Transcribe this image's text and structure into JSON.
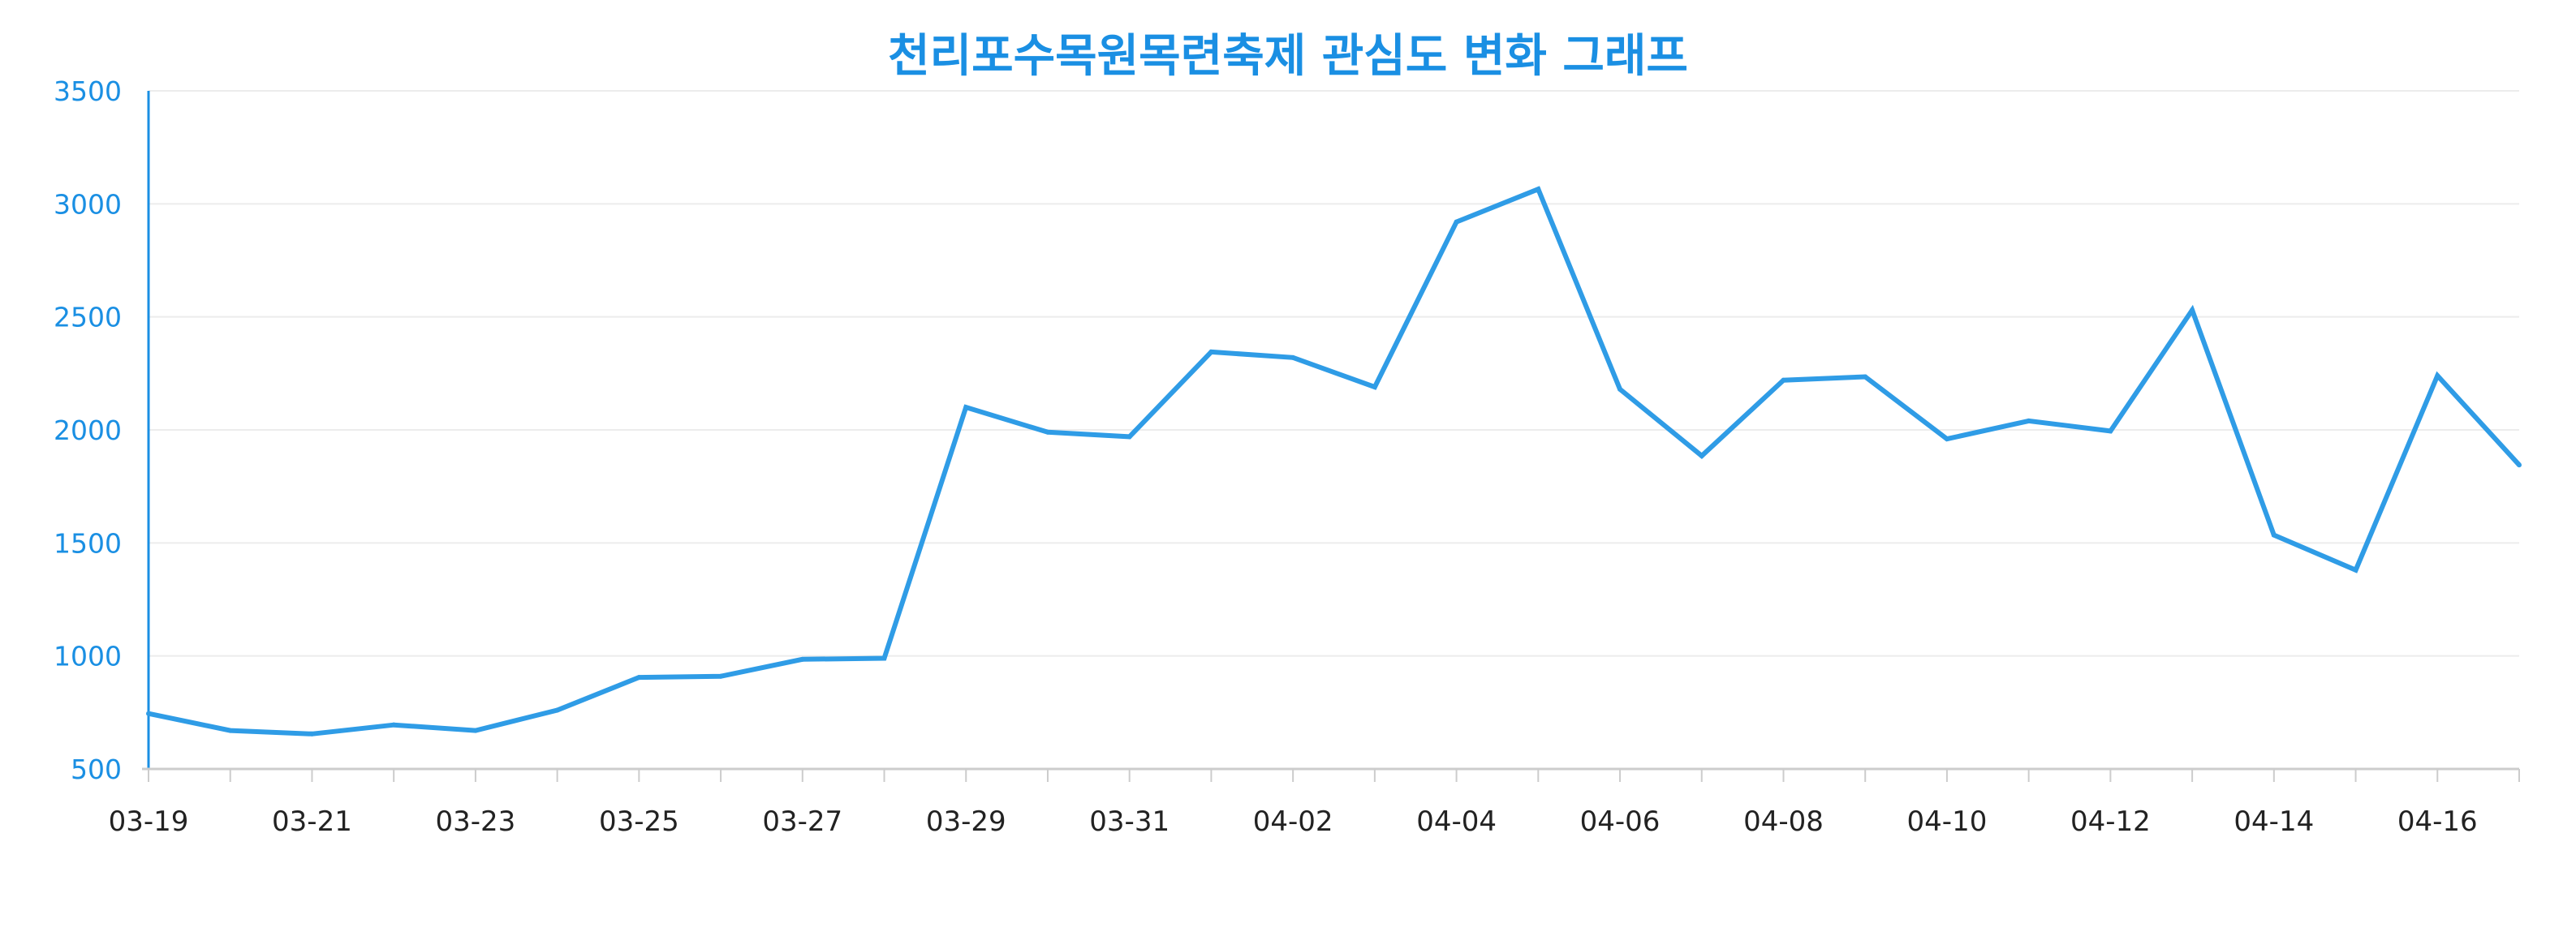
{
  "colors": {
    "accent": "#1a8fe3",
    "line": "#2f9ce6",
    "gridline": "#ececec",
    "tick_default": "#222222",
    "tick_saturday": "#2a9fd6",
    "tick_sunday": "#e4513a"
  },
  "chart_data": {
    "type": "line",
    "title": "천리포수목원목련축제 관심도 변화 그래프",
    "xlabel": "",
    "ylabel": "",
    "ylim": [
      500,
      3500
    ],
    "yticks": [
      500,
      1000,
      1500,
      2000,
      2500,
      3000,
      3500
    ],
    "grid": true,
    "x": [
      "03-19",
      "03-20",
      "03-21",
      "03-22",
      "03-23",
      "03-24",
      "03-25",
      "03-26",
      "03-27",
      "03-28",
      "03-29",
      "03-30",
      "03-31",
      "04-01",
      "04-02",
      "04-03",
      "04-04",
      "04-05",
      "04-06",
      "04-07",
      "04-08",
      "04-09",
      "04-10",
      "04-11",
      "04-12",
      "04-13",
      "04-14",
      "04-15",
      "04-16",
      "04-17"
    ],
    "xtick_labels": [
      {
        "label": "03-19",
        "color": "#222222"
      },
      {
        "label": "03-21",
        "color": "#222222"
      },
      {
        "label": "03-23",
        "color": "#2a9fd6"
      },
      {
        "label": "03-25",
        "color": "#222222"
      },
      {
        "label": "03-27",
        "color": "#222222"
      },
      {
        "label": "03-29",
        "color": "#222222"
      },
      {
        "label": "03-31",
        "color": "#e4513a"
      },
      {
        "label": "04-02",
        "color": "#222222"
      },
      {
        "label": "04-04",
        "color": "#222222"
      },
      {
        "label": "04-06",
        "color": "#2a9fd6"
      },
      {
        "label": "04-08",
        "color": "#222222"
      },
      {
        "label": "04-10",
        "color": "#222222"
      },
      {
        "label": "04-12",
        "color": "#222222"
      },
      {
        "label": "04-14",
        "color": "#e4513a"
      },
      {
        "label": "04-16",
        "color": "#222222"
      }
    ],
    "series": [
      {
        "values": [
          745,
          670,
          655,
          695,
          670,
          760,
          905,
          910,
          985,
          990,
          2100,
          1990,
          1970,
          2345,
          2320,
          2190,
          2920,
          3065,
          2180,
          1885,
          2220,
          2235,
          1960,
          2040,
          1995,
          2530,
          1535,
          1380,
          2240,
          1845
        ]
      }
    ]
  }
}
